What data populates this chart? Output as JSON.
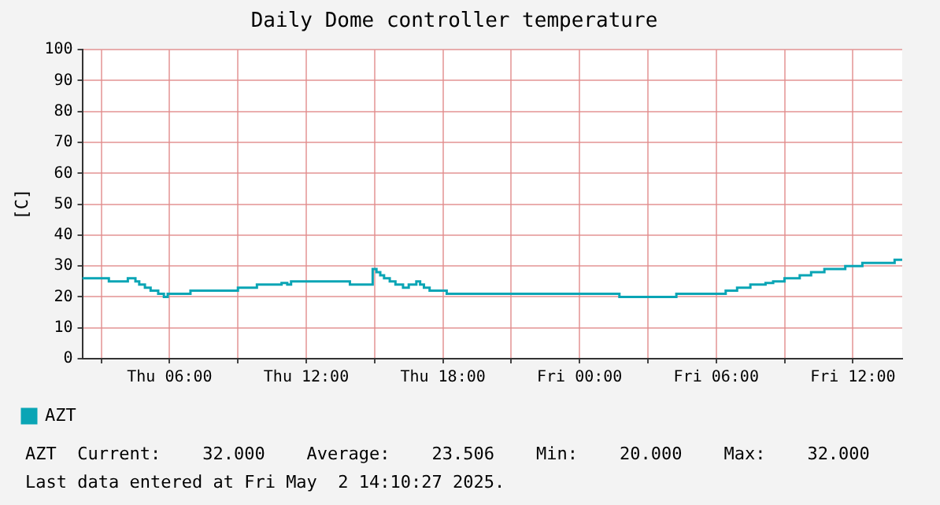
{
  "chart_data": {
    "type": "step",
    "title": "Daily Dome controller temperature",
    "ylabel": "[C]",
    "x": [
      "2025-05-01T02:10",
      "2025-05-01T03:20",
      "2025-05-01T04:10",
      "2025-05-01T04:30",
      "2025-05-01T04:40",
      "2025-05-01T04:55",
      "2025-05-01T05:10",
      "2025-05-01T05:30",
      "2025-05-01T05:45",
      "2025-05-01T05:55",
      "2025-05-01T06:55",
      "2025-05-01T09:00",
      "2025-05-01T09:50",
      "2025-05-01T10:55",
      "2025-05-01T11:10",
      "2025-05-01T11:20",
      "2025-05-01T13:55",
      "2025-05-01T14:55",
      "2025-05-01T15:05",
      "2025-05-01T15:15",
      "2025-05-01T15:25",
      "2025-05-01T15:40",
      "2025-05-01T15:55",
      "2025-05-01T16:15",
      "2025-05-01T16:30",
      "2025-05-01T16:50",
      "2025-05-01T17:00",
      "2025-05-01T17:10",
      "2025-05-01T17:25",
      "2025-05-01T18:10",
      "2025-05-02T01:45",
      "2025-05-02T04:15",
      "2025-05-02T06:25",
      "2025-05-02T06:55",
      "2025-05-02T07:30",
      "2025-05-02T08:10",
      "2025-05-02T08:30",
      "2025-05-02T09:00",
      "2025-05-02T09:40",
      "2025-05-02T10:10",
      "2025-05-02T10:45",
      "2025-05-02T11:40",
      "2025-05-02T12:25",
      "2025-05-02T13:50",
      "2025-05-02T14:10"
    ],
    "series": [
      {
        "name": "AZT",
        "color": "#0aa5b5",
        "values": [
          26,
          25,
          26,
          25,
          24,
          23,
          22,
          21,
          20,
          21,
          22,
          23,
          24,
          24.5,
          24,
          25,
          24,
          29,
          28,
          27,
          26,
          25,
          24,
          23,
          24,
          25,
          24,
          23,
          22,
          21,
          20,
          21,
          22,
          23,
          24,
          24.5,
          25,
          26,
          27,
          28,
          29,
          30,
          31,
          32,
          32
        ]
      }
    ],
    "xlim": [
      "2025-05-01T02:10",
      "2025-05-02T14:10"
    ],
    "xticks": [
      {
        "value": "2025-05-01T03:00",
        "label": null
      },
      {
        "value": "2025-05-01T06:00",
        "label": "Thu 06:00"
      },
      {
        "value": "2025-05-01T09:00",
        "label": null
      },
      {
        "value": "2025-05-01T12:00",
        "label": "Thu 12:00"
      },
      {
        "value": "2025-05-01T15:00",
        "label": null
      },
      {
        "value": "2025-05-01T18:00",
        "label": "Thu 18:00"
      },
      {
        "value": "2025-05-01T21:00",
        "label": null
      },
      {
        "value": "2025-05-02T00:00",
        "label": "Fri 00:00"
      },
      {
        "value": "2025-05-02T03:00",
        "label": null
      },
      {
        "value": "2025-05-02T06:00",
        "label": "Fri 06:00"
      },
      {
        "value": "2025-05-02T09:00",
        "label": null
      },
      {
        "value": "2025-05-02T12:00",
        "label": "Fri 12:00"
      }
    ],
    "ylim": [
      0,
      100
    ],
    "yticks": [
      0,
      10,
      20,
      30,
      40,
      50,
      60,
      70,
      80,
      90,
      100
    ],
    "grid": true,
    "legend": "bottom",
    "annotations": [
      "AZT  Current:    32.000    Average:    23.506    Min:    20.000    Max:    32.000",
      "Last data entered at Fri May  2 14:10:27 2025."
    ]
  }
}
